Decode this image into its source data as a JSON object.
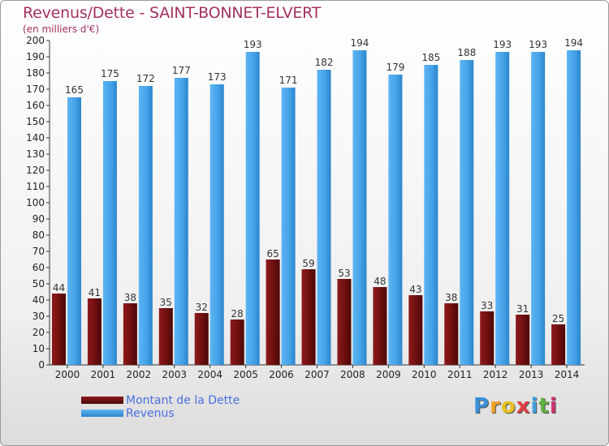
{
  "title": "Revenus/Dette - SAINT-BONNET-ELVERT",
  "subtitle": "(en milliers d'€)",
  "legend": {
    "debt_label": "Montant de la Dette",
    "revenue_label": "Revenus"
  },
  "logo": {
    "letters": [
      "P",
      "r",
      "o",
      "x",
      "i",
      "t",
      "i"
    ],
    "colors": [
      "#3a8fd8",
      "#f0a020",
      "#e8c020",
      "#e04040",
      "#40a0e0",
      "#60b040",
      "#d03070"
    ]
  },
  "colors": {
    "debt": "#7a1313",
    "revenue": "#3f9fe6"
  },
  "chart_data": {
    "type": "bar",
    "categories": [
      "2000",
      "2001",
      "2002",
      "2003",
      "2004",
      "2005",
      "2006",
      "2007",
      "2008",
      "2009",
      "2010",
      "2011",
      "2012",
      "2013",
      "2014"
    ],
    "series": [
      {
        "name": "Montant de la Dette",
        "values": [
          44,
          41,
          38,
          35,
          32,
          28,
          65,
          59,
          53,
          48,
          43,
          38,
          33,
          31,
          25
        ]
      },
      {
        "name": "Revenus",
        "values": [
          165,
          175,
          172,
          177,
          173,
          193,
          171,
          182,
          194,
          179,
          185,
          188,
          193,
          193,
          194
        ]
      }
    ],
    "ylim": [
      0,
      200
    ],
    "ytick_step": 10,
    "grid": false,
    "legend_position": "bottom-left"
  }
}
